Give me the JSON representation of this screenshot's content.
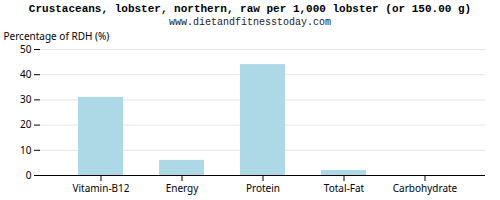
{
  "chart_data": {
    "type": "bar",
    "title": "Crustaceans, lobster, northern, raw per 1,000 lobster (or 150.00 g)",
    "subtitle": "www.dietandfitnesstoday.com",
    "categories": [
      "Vitamin-B12",
      "Energy",
      "Protein",
      "Total-Fat",
      "Carbohydrate"
    ],
    "values": [
      31,
      6,
      44,
      2,
      0
    ],
    "color": "#add8e6",
    "ylabel": "Percentage of RDH (%)",
    "ylim": [
      0,
      50
    ],
    "yticks": [
      0,
      10,
      20,
      30,
      40,
      50
    ],
    "grid": true
  }
}
